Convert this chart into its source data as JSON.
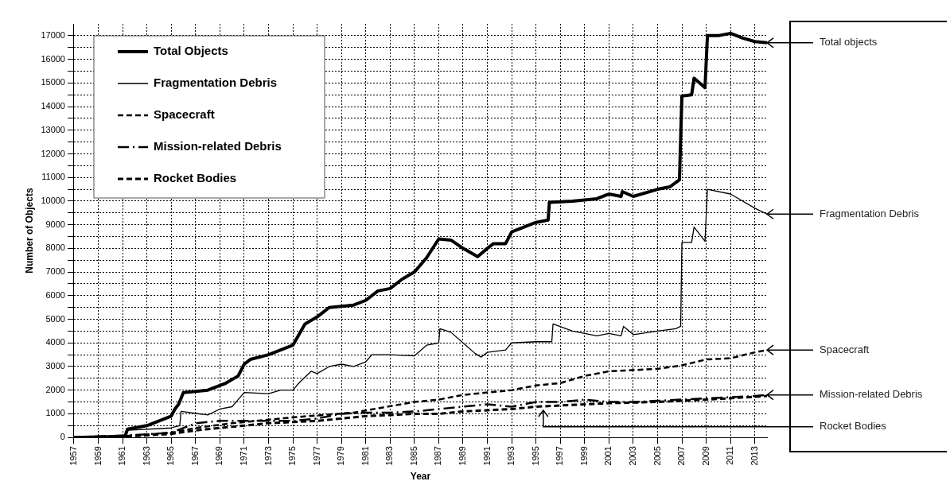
{
  "chart_data": {
    "type": "line",
    "xlabel": "Year",
    "ylabel": "Number of Objects",
    "xlim": [
      1957,
      2014
    ],
    "xticks": [
      1957,
      1959,
      1961,
      1963,
      1965,
      1967,
      1969,
      1971,
      1973,
      1975,
      1977,
      1979,
      1981,
      1983,
      1985,
      1987,
      1989,
      1991,
      1993,
      1995,
      1997,
      1999,
      2001,
      2003,
      2005,
      2007,
      2009,
      2011,
      2013
    ],
    "ylim": [
      0,
      17500
    ],
    "yticks": [
      0,
      {
        "value": 500,
        "label": null
      },
      1000,
      {
        "value": 1500,
        "label": null
      },
      2000,
      {
        "value": 2500,
        "label": null
      },
      3000,
      {
        "value": 3500,
        "label": null
      },
      4000,
      {
        "value": 4500,
        "label": null
      },
      5000,
      {
        "value": 5500,
        "label": null
      },
      6000,
      {
        "value": 6500,
        "label": null
      },
      7000,
      {
        "value": 7500,
        "label": null
      },
      8000,
      {
        "value": 8500,
        "label": null
      },
      9000,
      {
        "value": 9500,
        "label": null
      },
      10000,
      {
        "value": 10500,
        "label": null
      },
      11000,
      {
        "value": 11500,
        "label": null
      },
      12000,
      {
        "value": 12500,
        "label": null
      },
      13000,
      {
        "value": 13500,
        "label": null
      },
      14000,
      {
        "value": 14500,
        "label": null
      },
      15000,
      {
        "value": 15500,
        "label": null
      },
      16000,
      {
        "value": 16500,
        "label": null
      },
      17000
    ],
    "grid": true,
    "legend": "top left",
    "marker": "none",
    "series": [
      {
        "name": "Total Objects",
        "color": "#000000",
        "line_style": "solid",
        "x": [
          1957,
          1961.2,
          1961.4,
          1963,
          1964,
          1965,
          1965.3,
          1965.6,
          1966,
          1968,
          1969.5,
          1970.5,
          1971,
          1971.5,
          1973,
          1974,
          1975,
          1976,
          1977,
          1978,
          1980,
          1981,
          1982,
          1983,
          1984,
          1985,
          1986,
          1987,
          1988,
          1989,
          1990.2,
          1991,
          1991.5,
          1992.5,
          1993,
          1994,
          1995,
          1996,
          1996.1,
          1998,
          2000,
          2001,
          2002,
          2002.1,
          2003,
          2005,
          2006,
          2006.8,
          2007,
          2007.8,
          2008,
          2008.9,
          2009.1,
          2010,
          2011,
          2012,
          2013,
          2014
        ],
        "values": [
          0,
          50,
          350,
          500,
          700,
          900,
          1200,
          1400,
          1900,
          2000,
          2300,
          2600,
          3100,
          3300,
          3500,
          3700,
          3900,
          4800,
          5100,
          5500,
          5600,
          5800,
          6200,
          6300,
          6700,
          7000,
          7600,
          8400,
          8350,
          8000,
          7650,
          8000,
          8200,
          8200,
          8700,
          8900,
          9100,
          9200,
          9950,
          10000,
          10100,
          10300,
          10200,
          10400,
          10200,
          10500,
          10600,
          10900,
          14450,
          14500,
          15200,
          14800,
          17000,
          17000,
          17100,
          16900,
          16750,
          16700
        ]
      },
      {
        "name": "Fragmentation Debris",
        "color": "#000000",
        "line_style": "solid",
        "x": [
          1957,
          1961.2,
          1961.4,
          1965,
          1965.3,
          1965.7,
          1965.8,
          1968,
          1969,
          1970,
          1970.5,
          1971,
          1973,
          1974,
          1975,
          1975.5,
          1976.5,
          1977,
          1978,
          1979,
          1980,
          1981,
          1981.5,
          1983,
          1985,
          1986,
          1987,
          1987.1,
          1988,
          1989,
          1990,
          1990.5,
          1991,
          1992.5,
          1993,
          1995,
          1996.3,
          1996.4,
          1998,
          2000,
          2001,
          2002,
          2002.2,
          2003,
          2005,
          2006.5,
          2006.9,
          2007,
          2007.8,
          2008,
          2008.9,
          2009.1,
          2011,
          2013,
          2014
        ],
        "values": [
          0,
          0,
          300,
          400,
          450,
          500,
          1100,
          950,
          1200,
          1300,
          1600,
          1900,
          1850,
          2000,
          2000,
          2300,
          2800,
          2700,
          3000,
          3100,
          3000,
          3200,
          3500,
          3500,
          3450,
          3900,
          4000,
          4600,
          4450,
          4000,
          3550,
          3400,
          3600,
          3700,
          4000,
          4050,
          4050,
          4800,
          4500,
          4300,
          4400,
          4300,
          4700,
          4350,
          4500,
          4600,
          4700,
          8250,
          8250,
          8900,
          8300,
          10500,
          10300,
          9700,
          9450
        ]
      },
      {
        "name": "Spacecraft",
        "color": "#000000",
        "line_style": "dashed",
        "x": [
          1957,
          1961,
          1965,
          1967,
          1970,
          1975,
          1980,
          1985,
          1987,
          1989,
          1993,
          1995,
          1997,
          1999,
          2001,
          2005,
          2007,
          2009,
          2011,
          2013,
          2014
        ],
        "values": [
          0,
          50,
          200,
          400,
          600,
          850,
          1050,
          1500,
          1600,
          1800,
          2000,
          2200,
          2300,
          2600,
          2800,
          2900,
          3050,
          3300,
          3350,
          3600,
          3700
        ]
      },
      {
        "name": "Mission-related Debris",
        "color": "#000000",
        "line_style": "dotted",
        "x": [
          1957,
          1962,
          1965,
          1967,
          1969,
          1973,
          1975,
          1977,
          1979,
          1981,
          1983,
          1985,
          1987,
          1989,
          1991,
          1993,
          1995,
          1997,
          1999,
          2001,
          2003,
          2005,
          2007,
          2009,
          2011,
          2013,
          2014
        ],
        "values": [
          0,
          100,
          200,
          600,
          700,
          700,
          700,
          800,
          1000,
          1050,
          1050,
          1100,
          1200,
          1300,
          1400,
          1300,
          1500,
          1500,
          1600,
          1500,
          1500,
          1550,
          1600,
          1650,
          1700,
          1750,
          1800
        ]
      },
      {
        "name": "Rocket Bodies",
        "color": "#000000",
        "line_style": "dashed",
        "x": [
          1957,
          1961,
          1965,
          1967,
          1969,
          1971,
          1973,
          1975,
          1977,
          1979,
          1981,
          1983,
          1985,
          1987,
          1989,
          1991,
          1993,
          1995,
          1997,
          2001,
          2005,
          2009,
          2014
        ],
        "values": [
          0,
          30,
          150,
          300,
          400,
          500,
          600,
          650,
          700,
          800,
          900,
          950,
          1000,
          1000,
          1100,
          1150,
          1200,
          1300,
          1350,
          1450,
          1500,
          1600,
          1750
        ]
      }
    ],
    "annotations": [
      "Total objects",
      "Fragmentation Debris",
      "Spacecraft",
      "Mission-related Debris",
      {
        "text": "Rocket Bodies",
        "x": 1995.6,
        "y": 1150
      }
    ]
  }
}
